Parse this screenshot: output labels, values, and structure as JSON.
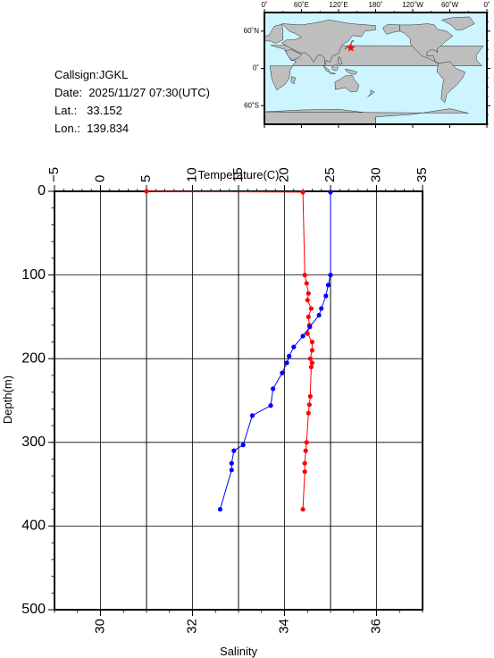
{
  "station": {
    "callsign_label": "Callsign:JGKL",
    "date_label": "Date:  2025/11/27 07:30(UTC)",
    "lat_label": "Lat.:   33.152",
    "lon_label": "Lon.:  139.834"
  },
  "map": {
    "lon_ticks": [
      "0˚",
      "60˚E",
      "120˚E",
      "180˚",
      "120˚W",
      "60˚W",
      "0˚"
    ],
    "lat_ticks": [
      "60˚N",
      "0˚",
      "60˚S"
    ],
    "ocean_color": "#ccf5ff",
    "land_color": "#bebebe",
    "marker_color": "#ff0000",
    "marker_icon": "star-icon",
    "marker_lon": 139.834,
    "marker_lat": 33.152
  },
  "chart_data": {
    "type": "line",
    "ylabel": "Depth(m)",
    "ylim": [
      500,
      0
    ],
    "y_ticks": [
      "0",
      "100",
      "200",
      "300",
      "400",
      "500"
    ],
    "grid": true,
    "x_top": {
      "label": "Temperature(C)",
      "range": [
        -5,
        35
      ],
      "ticks": [
        "−5",
        "0",
        "5",
        "10",
        "15",
        "20",
        "25",
        "30",
        "35"
      ]
    },
    "x_bottom": {
      "label": "Salinity",
      "range": [
        29,
        37
      ],
      "ticks": [
        "30",
        "32",
        "34",
        "36"
      ]
    },
    "series": [
      {
        "axis": "temperature",
        "color": "#ff0000",
        "points": [
          [
            5.0,
            0
          ],
          [
            22.0,
            1
          ],
          [
            22.2,
            100
          ],
          [
            22.4,
            110
          ],
          [
            22.6,
            122
          ],
          [
            22.5,
            130
          ],
          [
            22.9,
            140
          ],
          [
            22.6,
            150
          ],
          [
            22.7,
            160
          ],
          [
            22.5,
            170
          ],
          [
            23.0,
            180
          ],
          [
            23.0,
            190
          ],
          [
            22.8,
            200
          ],
          [
            23.0,
            205
          ],
          [
            22.9,
            210
          ],
          [
            22.8,
            245
          ],
          [
            22.7,
            255
          ],
          [
            22.6,
            265
          ],
          [
            22.4,
            300
          ],
          [
            22.3,
            310
          ],
          [
            22.2,
            325
          ],
          [
            22.2,
            335
          ],
          [
            22.0,
            380
          ]
        ]
      },
      {
        "axis": "salinity",
        "color": "#0000ff",
        "points": [
          [
            35.0,
            1
          ],
          [
            35.0,
            100
          ],
          [
            34.95,
            112
          ],
          [
            34.9,
            125
          ],
          [
            34.8,
            140
          ],
          [
            34.75,
            148
          ],
          [
            34.55,
            162
          ],
          [
            34.4,
            173
          ],
          [
            34.2,
            186
          ],
          [
            34.1,
            197
          ],
          [
            34.05,
            205
          ],
          [
            33.95,
            217
          ],
          [
            33.75,
            236
          ],
          [
            33.7,
            256
          ],
          [
            33.3,
            268
          ],
          [
            33.1,
            303
          ],
          [
            32.9,
            310
          ],
          [
            32.85,
            325
          ],
          [
            32.85,
            333
          ],
          [
            32.6,
            380
          ]
        ]
      }
    ]
  }
}
